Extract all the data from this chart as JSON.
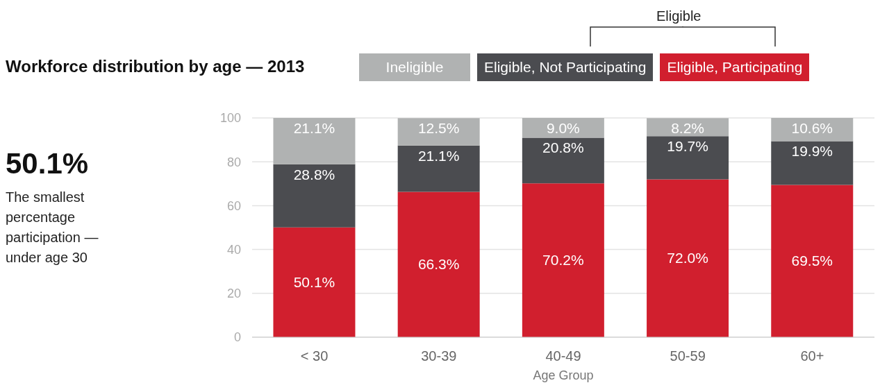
{
  "chart_data": {
    "type": "bar",
    "title": "Workforce distribution by age — 2013",
    "xlabel": "Age Group",
    "categories": [
      "< 30",
      "30-39",
      "40-49",
      "50-59",
      "60+"
    ],
    "stacked": true,
    "series": [
      {
        "name": "Eligible, Participating",
        "color": "#d11f2e",
        "values": [
          50.1,
          66.3,
          70.2,
          72.0,
          69.5
        ],
        "value_labels": [
          "50.1%",
          "66.3%",
          "70.2%",
          "72.0%",
          "69.5%"
        ]
      },
      {
        "name": "Eligible, Not Participating",
        "color": "#4b4c50",
        "values": [
          28.8,
          21.1,
          20.8,
          19.7,
          19.9
        ],
        "value_labels": [
          "28.8%",
          "21.1%",
          "20.8%",
          "19.7%",
          "19.9%"
        ]
      },
      {
        "name": "Ineligible",
        "color": "#b0b2b2",
        "values": [
          21.1,
          12.5,
          9.0,
          8.2,
          10.6
        ],
        "value_labels": [
          "21.1%",
          "12.5%",
          "9.0%",
          "8.2%",
          "10.6%"
        ]
      }
    ],
    "legend_title": "Eligible",
    "ylim": [
      0,
      100
    ],
    "yticks": [
      0,
      20,
      40,
      60,
      80,
      100
    ],
    "grid": "y",
    "legend": "top right",
    "annotations": [
      "50.1%",
      "The smallest percentage participation — under age 30"
    ]
  }
}
